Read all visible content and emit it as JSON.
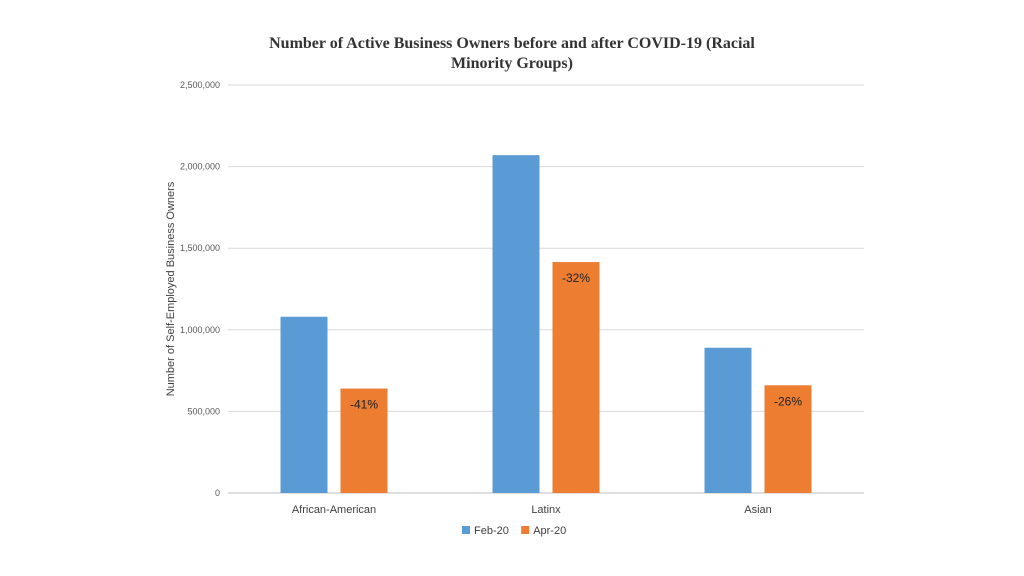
{
  "chart_data": {
    "type": "bar",
    "title_lines": [
      "Number of Active Business Owners before and after COVID-19 (Racial",
      "Minority Groups)"
    ],
    "title": "Number of Active Business Owners before and after COVID-19 (Racial Minority Groups)",
    "xlabel": "",
    "ylabel": "Number of Self-Employed Business Owners",
    "ylim": [
      0,
      2500000
    ],
    "yticks": [
      0,
      500000,
      1000000,
      1500000,
      2000000,
      2500000
    ],
    "ytick_labels": [
      "0",
      "500,000",
      "1,000,000",
      "1,500,000",
      "2,000,000",
      "2,500,000"
    ],
    "categories": [
      "African-American",
      "Latinx",
      "Asian"
    ],
    "series": [
      {
        "name": "Feb-20",
        "color": "#5b9bd5",
        "values": [
          1080000,
          2070000,
          890000
        ],
        "labels": [
          "",
          "",
          ""
        ]
      },
      {
        "name": "Apr-20",
        "color": "#ed7d31",
        "values": [
          640000,
          1415000,
          660000
        ],
        "labels": [
          "-41%",
          "-32%",
          "-26%"
        ]
      }
    ],
    "grid": true,
    "legend_position": "bottom"
  }
}
